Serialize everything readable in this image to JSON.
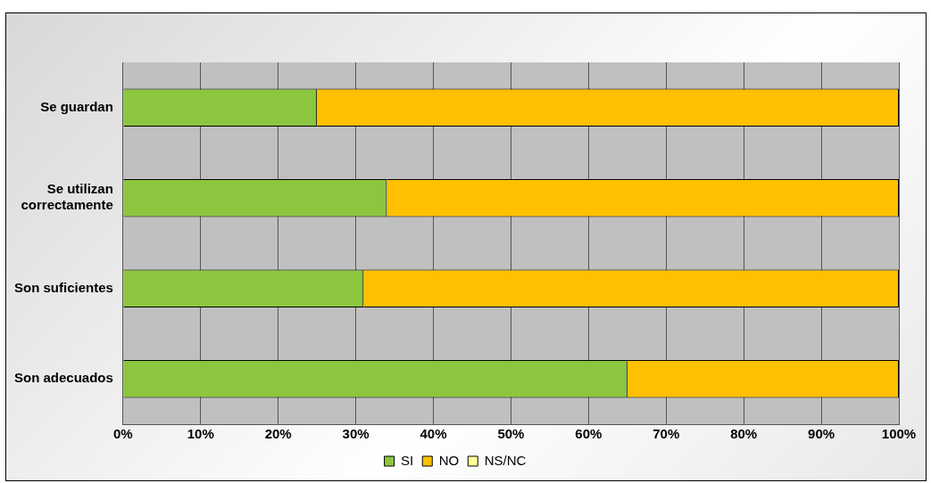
{
  "chart_data": {
    "type": "bar",
    "orientation": "horizontal",
    "stacked": true,
    "categories": [
      "Se guardan",
      "Se utilizan correctamente",
      "Son suficientes",
      "Son adecuados"
    ],
    "series": [
      {
        "name": "SI",
        "color": "#8cc63f",
        "values": [
          25,
          34,
          31,
          65
        ]
      },
      {
        "name": "NO",
        "color": "#ffc000",
        "values": [
          75,
          66,
          69,
          35
        ]
      },
      {
        "name": "NS/NC",
        "color": "#ffff99",
        "values": [
          0,
          0,
          0,
          0
        ]
      }
    ],
    "xlim": [
      0,
      100
    ],
    "xticks": [
      {
        "value": 0,
        "label": "0%"
      },
      {
        "value": 10,
        "label": "10%"
      },
      {
        "value": 20,
        "label": "20%"
      },
      {
        "value": 30,
        "label": "30%"
      },
      {
        "value": 40,
        "label": "40%"
      },
      {
        "value": 50,
        "label": "50%"
      },
      {
        "value": 60,
        "label": "60%"
      },
      {
        "value": 70,
        "label": "70%"
      },
      {
        "value": 80,
        "label": "80%"
      },
      {
        "value": 90,
        "label": "90%"
      },
      {
        "value": 100,
        "label": "100%"
      }
    ],
    "grid": "x",
    "legend": "bottom"
  }
}
